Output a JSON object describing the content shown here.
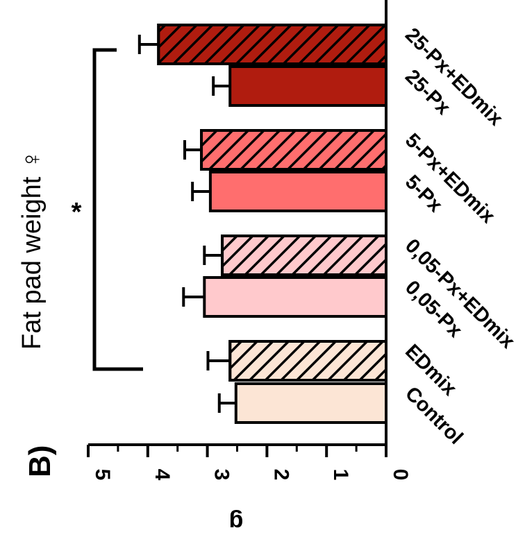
{
  "chart_data": {
    "type": "bar",
    "panel_label": "B)",
    "title": "Fat pad weight ♀",
    "ylabel": "g",
    "ylim": [
      0,
      5
    ],
    "yticks": [
      "0",
      "1",
      "2",
      "3",
      "4",
      "5"
    ],
    "categories": [
      "Control",
      "EDmix",
      "0,05-Px",
      "0,05-Px+EDmix",
      "5-Px",
      "5-Px+EDmix",
      "25-Px",
      "25-Px+EDmix"
    ],
    "values": [
      2.52,
      2.62,
      3.05,
      2.75,
      2.95,
      3.1,
      2.62,
      3.82
    ],
    "errors": [
      0.28,
      0.37,
      0.35,
      0.3,
      0.3,
      0.28,
      0.28,
      0.32
    ],
    "colors": [
      "#fce5d5",
      "#fce5d5",
      "#ffc9cc",
      "#ffc9cc",
      "#ff6e6e",
      "#ff6e6e",
      "#b01c0f",
      "#b01c0f"
    ],
    "hatched": [
      false,
      true,
      false,
      true,
      false,
      true,
      false,
      true
    ],
    "significance": {
      "label": "*",
      "from": "Control",
      "to": "25-Px+EDmix"
    }
  }
}
